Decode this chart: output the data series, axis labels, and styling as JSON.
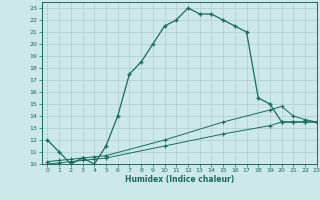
{
  "xlabel": "Humidex (Indice chaleur)",
  "xlim": [
    -0.5,
    23
  ],
  "ylim": [
    10,
    23.5
  ],
  "yticks": [
    10,
    11,
    12,
    13,
    14,
    15,
    16,
    17,
    18,
    19,
    20,
    21,
    22,
    23
  ],
  "xticks": [
    0,
    1,
    2,
    3,
    4,
    5,
    6,
    7,
    8,
    9,
    10,
    11,
    12,
    13,
    14,
    15,
    16,
    17,
    18,
    19,
    20,
    21,
    22,
    23
  ],
  "bg_color": "#cce8e8",
  "line_color": "#1a6b5a",
  "grid_color": "#b0cece",
  "line1_x": [
    0,
    1,
    2,
    3,
    4,
    5,
    6,
    7,
    8,
    9,
    10,
    11,
    12,
    13,
    14,
    15,
    16,
    17,
    18,
    19,
    20,
    21,
    22,
    23
  ],
  "line1_y": [
    12,
    11,
    10,
    10.5,
    10,
    11.5,
    14.0,
    17.5,
    18.5,
    20.0,
    21.5,
    22.0,
    23.0,
    22.5,
    22.5,
    22.0,
    21.5,
    21.0,
    15.5,
    15.0,
    13.5,
    13.5,
    13.5,
    13.5
  ],
  "line2_x": [
    0,
    1,
    2,
    3,
    4,
    5,
    10,
    15,
    19,
    20,
    21,
    22,
    23
  ],
  "line2_y": [
    10.2,
    10.3,
    10.4,
    10.5,
    10.6,
    10.7,
    12.0,
    13.5,
    14.5,
    14.8,
    14.0,
    13.7,
    13.5
  ],
  "line3_x": [
    0,
    1,
    2,
    3,
    4,
    5,
    10,
    15,
    19,
    20,
    21,
    22,
    23
  ],
  "line3_y": [
    10.0,
    10.1,
    10.2,
    10.3,
    10.4,
    10.5,
    11.5,
    12.5,
    13.2,
    13.5,
    13.5,
    13.5,
    13.5
  ]
}
